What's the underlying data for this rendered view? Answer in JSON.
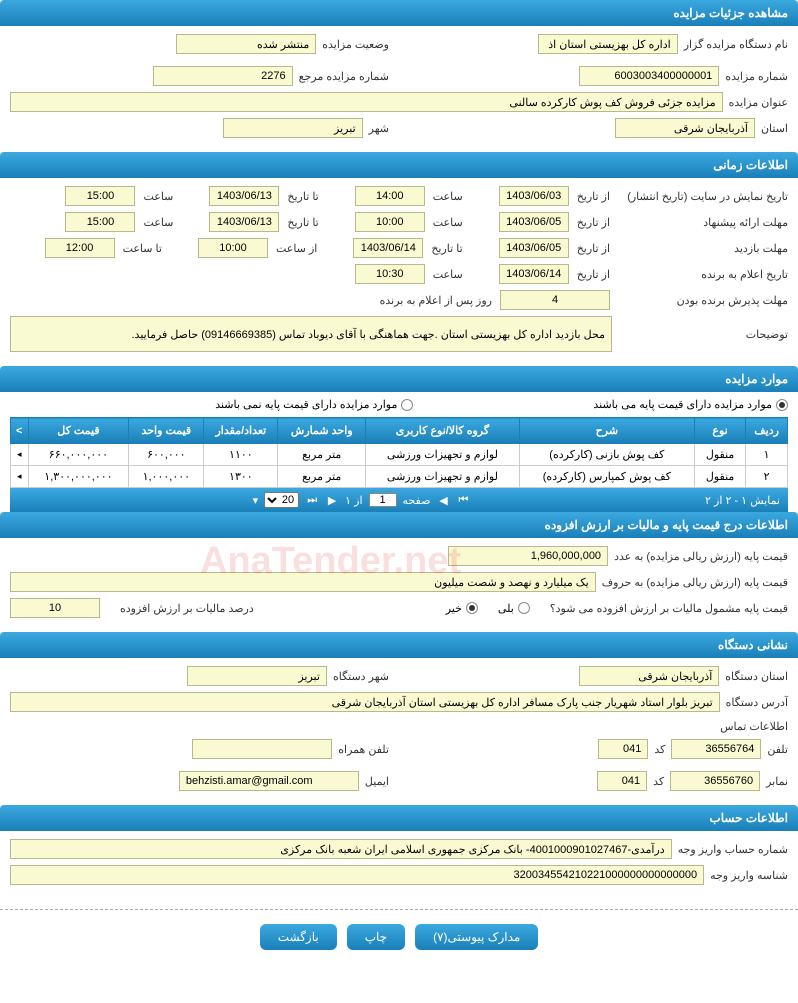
{
  "sections": {
    "details": "مشاهده جزئیات مزایده",
    "timing": "اطلاعات زمانی",
    "items": "موارد مزایده",
    "pricing": "اطلاعات درج قیمت پایه و مالیات بر ارزش افزوده",
    "org": "نشانی دستگاه",
    "account": "اطلاعات حساب"
  },
  "details": {
    "org_name_label": "نام دستگاه مزایده گزار",
    "org_name": "اداره کل بهزیستی استان اذ",
    "status_label": "وضعیت مزایده",
    "status": "منتشر شده",
    "auction_no_label": "شماره مزایده",
    "auction_no": "6003003400000001",
    "ref_no_label": "شماره مزایده مرجع",
    "ref_no": "2276",
    "title_label": "عنوان مزایده",
    "title": "مزایده جزئی فروش کف پوش کارکرده سالنی",
    "province_label": "استان",
    "province": "آذربایجان شرقی",
    "city_label": "شهر",
    "city": "تبریز"
  },
  "timing": {
    "display_label": "تاریخ نمایش در سایت (تاریخ انتشار)",
    "offer_label": "مهلت ارائه پیشنهاد",
    "visit_label": "مهلت بازدید",
    "announce_label": "تاریخ اعلام به برنده",
    "accept_label": "مهلت پذیرش برنده بودن",
    "notes_label": "توضیحات",
    "from_label": "از تاریخ",
    "to_label": "تا تاریخ",
    "time_label": "ساعت",
    "from_time_label": "از ساعت",
    "to_time_label": "تا ساعت",
    "after_label": "روز پس از اعلام به برنده",
    "display": {
      "from_date": "1403/06/03",
      "from_time": "14:00",
      "to_date": "1403/06/13",
      "to_time": "15:00"
    },
    "offer": {
      "from_date": "1403/06/05",
      "from_time": "10:00",
      "to_date": "1403/06/13",
      "to_time": "15:00"
    },
    "visit": {
      "from_date": "1403/06/05",
      "to_date": "1403/06/14",
      "from_time": "10:00",
      "to_time": "12:00"
    },
    "announce": {
      "date": "1403/06/14",
      "time": "10:30"
    },
    "accept_days": "4",
    "notes": "محل بازدید اداره کل  بهزیستی استان .جهت هماهنگی با آقای دیوباد تماس (09146669385) حاصل فرمایید."
  },
  "radios": {
    "with_base": "موارد مزایده دارای قیمت پایه می باشند",
    "without_base": "موارد مزایده دارای قیمت پایه نمی باشند"
  },
  "grid": {
    "headers": [
      "ردیف",
      "نوع",
      "شرح",
      "گروه کالا/نوع کاربری",
      "واحد شمارش",
      "تعداد/مقدار",
      "قیمت واحد",
      "قیمت کل",
      ">"
    ],
    "rows": [
      [
        "۱",
        "منقول",
        "کف پوش بازنی (کارکرده)",
        "لوازم و تجهیزات ورزشی",
        "متر مربع",
        "۱۱۰۰",
        "۶۰۰,۰۰۰",
        "۶۶۰,۰۰۰,۰۰۰"
      ],
      [
        "۲",
        "منقول",
        "کف پوش کمپارس (کارکرده)",
        "لوازم و تجهیزات ورزشی",
        "متر مربع",
        "۱۳۰۰",
        "۱,۰۰۰,۰۰۰",
        "۱,۳۰۰,۰۰۰,۰۰۰"
      ]
    ],
    "pager": {
      "summary": "نمایش ۱ - ۲ از ۲",
      "page_label": "صفحه",
      "of_label": "از ۱",
      "page": "1",
      "size": "20"
    }
  },
  "pricing": {
    "base_num_label": "قیمت پایه (ارزش ریالی مزایده) به عدد",
    "base_num": "1,960,000,000",
    "base_word_label": "قیمت پایه (ارزش ریالی مزایده) به حروف",
    "base_word": "یک میلیارد و نهصد و شصت میلیون",
    "vat_q_label": "قیمت پایه مشمول مالیات بر ارزش افزوده می شود؟",
    "yes": "بلی",
    "no": "خیر",
    "vat_pct_label": "درصد مالیات بر ارزش افزوده",
    "vat_pct": "10"
  },
  "org": {
    "province_label": "استان دستگاه",
    "province": "آذربایجان شرقی",
    "city_label": "شهر دستگاه",
    "city": "تبریز",
    "address_label": "آدرس دستگاه",
    "address": "تبریز بلوار استاد شهریار جنب پارک مسافر اداره کل بهزیستی استان آذربایجان شرقی",
    "contact_header": "اطلاعات تماس",
    "phone_label": "تلفن",
    "phone": "36556764",
    "code_label": "کد",
    "code": "041",
    "mobile_label": "تلفن همراه",
    "mobile": "",
    "fax_label": "نمابر",
    "fax": "36556760",
    "fax_code": "041",
    "email_label": "ایمیل",
    "email": "behzisti.amar@gmail.com"
  },
  "account": {
    "acc_label": "شماره حساب واریز وجه",
    "acc": "درآمدی-4001000901027467- بانک مرکزی جمهوری اسلامی ایران شعبه بانک مرکزی",
    "id_label": "شناسه واریز وجه",
    "id": "320034554210221000000000000000"
  },
  "buttons": {
    "attachments": "مدارک پیوستی(۷)",
    "print": "چاپ",
    "back": "بازگشت"
  },
  "watermark": "AnaTender.net",
  "colors": {
    "header_grad_top": "#3ba9e0",
    "header_grad_bottom": "#1a7fb8",
    "field_bg": "#fafad2",
    "field_border": "#b8b88a"
  }
}
